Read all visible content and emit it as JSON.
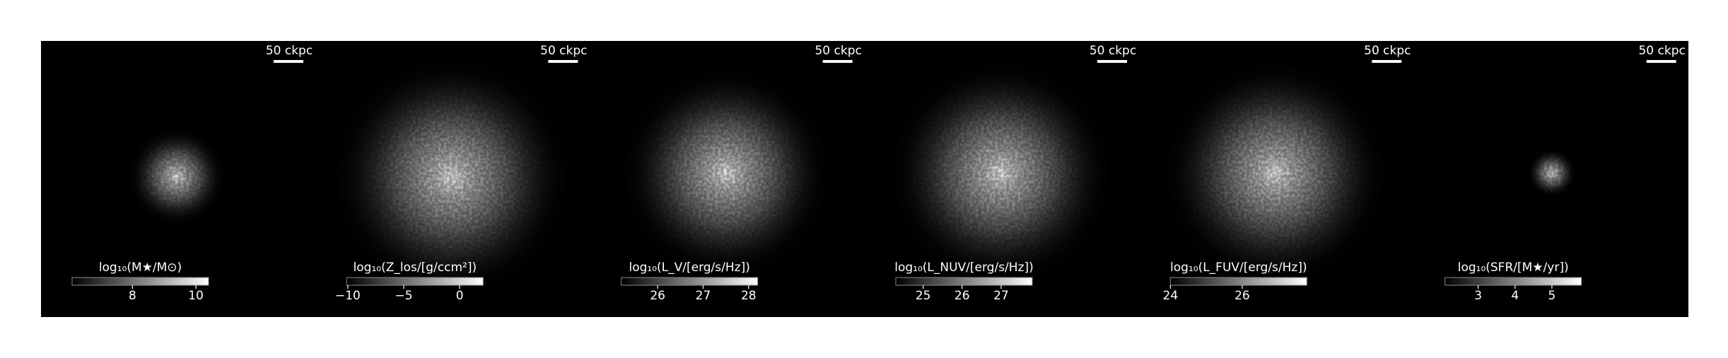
{
  "chart_data": [
    {
      "type": "image",
      "scale_label": "50 ckpc",
      "colorbar_label": "log₁₀(M★/M⊙)",
      "xlim": [
        6.1,
        10.4
      ],
      "xticks": [
        8,
        10
      ],
      "blob": 1
    },
    {
      "type": "image",
      "scale_label": "50 ckpc",
      "colorbar_label": "log₁₀(Z_los/[g/ccm²])",
      "xlim": [
        -10.1,
        2.1
      ],
      "xticks": [
        {
          "value": -10,
          "label": "−10"
        },
        {
          "value": -5,
          "label": "−5"
        },
        0
      ],
      "blob": 2
    },
    {
      "type": "image",
      "scale_label": "50 ckpc",
      "colorbar_label": "log₁₀(L_V/[erg/s/Hz])",
      "xlim": [
        25.2,
        28.2
      ],
      "xticks": [
        26,
        27,
        28
      ],
      "blob": 3
    },
    {
      "type": "image",
      "scale_label": "50 ckpc",
      "colorbar_label": "log₁₀(L_NUV/[erg/s/Hz])",
      "xlim": [
        24.3,
        27.8
      ],
      "xticks": [
        25,
        26,
        27
      ],
      "blob": 4
    },
    {
      "type": "image",
      "scale_label": "50 ckpc",
      "colorbar_label": "log₁₀(L_FUV/[erg/s/Hz])",
      "xlim": [
        24.0,
        27.8
      ],
      "xticks": [
        24,
        26
      ],
      "blob": 5
    },
    {
      "type": "image",
      "scale_label": "50 ckpc",
      "colorbar_label": "log₁₀(SFR/[M★/yr])",
      "xlim": [
        2.1,
        5.8
      ],
      "xticks": [
        3,
        4,
        5
      ],
      "blob": 6
    }
  ]
}
